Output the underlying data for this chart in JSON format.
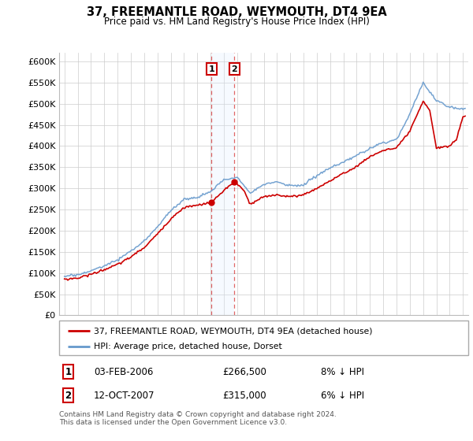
{
  "title": "37, FREEMANTLE ROAD, WEYMOUTH, DT4 9EA",
  "subtitle": "Price paid vs. HM Land Registry's House Price Index (HPI)",
  "red_label": "37, FREEMANTLE ROAD, WEYMOUTH, DT4 9EA (detached house)",
  "blue_label": "HPI: Average price, detached house, Dorset",
  "sale1_date": "03-FEB-2006",
  "sale1_price": "£266,500",
  "sale1_hpi": "8% ↓ HPI",
  "sale1_year": 2006.08,
  "sale1_price_val": 266500,
  "sale2_date": "12-OCT-2007",
  "sale2_price": "£315,000",
  "sale2_hpi": "6% ↓ HPI",
  "sale2_year": 2007.79,
  "sale2_price_val": 315000,
  "footer": "Contains HM Land Registry data © Crown copyright and database right 2024.\nThis data is licensed under the Open Government Licence v3.0.",
  "ylim": [
    0,
    620000
  ],
  "yticks": [
    0,
    50000,
    100000,
    150000,
    200000,
    250000,
    300000,
    350000,
    400000,
    450000,
    500000,
    550000,
    600000
  ],
  "background_color": "#ffffff",
  "grid_color": "#cccccc",
  "red_color": "#cc0000",
  "blue_color": "#6699cc",
  "span_color": "#ddeeff"
}
